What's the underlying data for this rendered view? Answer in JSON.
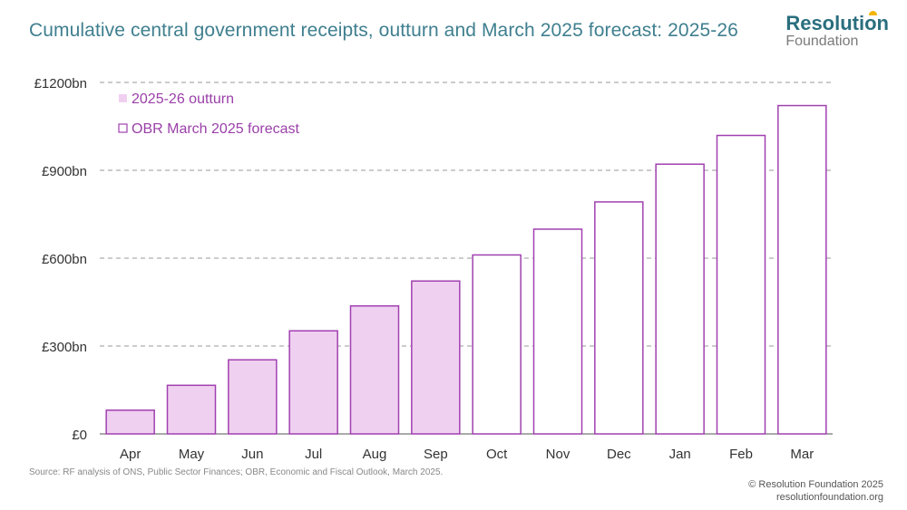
{
  "header": {
    "title": "Cumulative central government receipts, outturn and March 2025 forecast: 2025-26"
  },
  "logo": {
    "main": "Resolution",
    "sub": "Foundation",
    "accent_color": "#f2b400"
  },
  "chart_data": {
    "type": "bar",
    "title": "Cumulative central government receipts, outturn and March 2025 forecast: 2025-26",
    "xlabel": "",
    "ylabel": "",
    "ylim": [
      0,
      1200
    ],
    "yticks": [
      0,
      300,
      600,
      900,
      1200
    ],
    "ytick_labels": [
      "£0",
      "£300bn",
      "£600bn",
      "£900bn",
      "£1200bn"
    ],
    "grid": true,
    "legend_position": "top-left",
    "categories": [
      "Apr",
      "May",
      "Jun",
      "Jul",
      "Aug",
      "Sep",
      "Oct",
      "Nov",
      "Dec",
      "Jan",
      "Feb",
      "Mar"
    ],
    "series": [
      {
        "name": "2025-26 outturn",
        "style": "filled",
        "color": "#f0d0f0",
        "edge_color": "#a040b0",
        "values": [
          81,
          166,
          253,
          352,
          437,
          522,
          null,
          null,
          null,
          null,
          null,
          null
        ]
      },
      {
        "name": "OBR March 2025 forecast",
        "style": "outline",
        "color": "#ffffff",
        "edge_color": "#a040b0",
        "values": [
          null,
          null,
          null,
          null,
          null,
          null,
          611,
          699,
          792,
          921,
          1019,
          1121
        ]
      }
    ],
    "legend_text_color": "#9a40a8"
  },
  "footer": {
    "source": "Source: RF analysis of ONS, Public Sector Finances; OBR, Economic and Fiscal Outlook, March 2025.",
    "copyright_line1": "© Resolution Foundation 2025",
    "copyright_line2": "resolutionfoundation.org"
  }
}
